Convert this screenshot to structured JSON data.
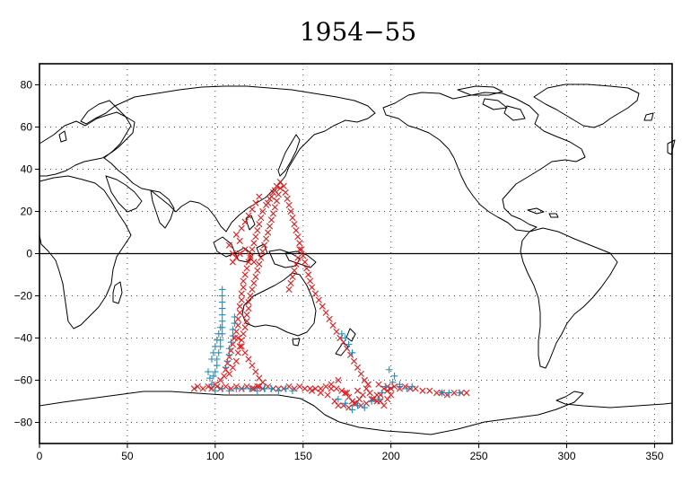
{
  "chart_data": {
    "type": "scatter",
    "title": "1954−55",
    "xlabel": "",
    "ylabel": "",
    "xlim": [
      0,
      360
    ],
    "ylim": [
      -90,
      90
    ],
    "x_ticks": [
      0,
      50,
      100,
      150,
      200,
      250,
      300,
      350
    ],
    "x_tick_labels": [
      "0",
      "50",
      "100",
      "150",
      "200",
      "250",
      "300",
      "350"
    ],
    "y_ticks": [
      -80,
      -60,
      -40,
      -20,
      0,
      20,
      40,
      60,
      80
    ],
    "y_tick_labels": [
      "−80",
      "−60",
      "−40",
      "−20",
      "0",
      "20",
      "40",
      "60",
      "80"
    ],
    "grid": true,
    "grid_x": [
      50,
      100,
      150,
      200,
      250,
      300,
      350
    ],
    "grid_y": [
      -80,
      -60,
      -40,
      -20,
      20,
      40,
      60,
      80
    ],
    "reference_line_y": 0,
    "basemap": "world-coastlines",
    "series": [
      {
        "marker": "x",
        "color": "#e41a1c",
        "points": [
          [
            88,
            -64
          ],
          [
            90,
            -63
          ],
          [
            93,
            -64
          ],
          [
            96,
            -63
          ],
          [
            98,
            -64
          ],
          [
            101,
            -63
          ],
          [
            103,
            -64
          ],
          [
            106,
            -63
          ],
          [
            109,
            -64
          ],
          [
            112,
            -63
          ],
          [
            115,
            -64
          ],
          [
            118,
            -63
          ],
          [
            121,
            -64
          ],
          [
            124,
            -63
          ],
          [
            127,
            -64
          ],
          [
            130,
            -63
          ],
          [
            133,
            -64
          ],
          [
            136,
            -64
          ],
          [
            139,
            -64
          ],
          [
            142,
            -63
          ],
          [
            145,
            -64
          ],
          [
            148,
            -63
          ],
          [
            151,
            -64
          ],
          [
            154,
            -64
          ],
          [
            157,
            -64
          ],
          [
            160,
            -64
          ],
          [
            163,
            -63
          ],
          [
            166,
            -64
          ],
          [
            169,
            -64
          ],
          [
            172,
            -65
          ],
          [
            174,
            -66
          ],
          [
            176,
            -68
          ],
          [
            178,
            -70
          ],
          [
            180,
            -71
          ],
          [
            182,
            -69
          ],
          [
            184,
            -67
          ],
          [
            186,
            -64
          ],
          [
            188,
            -66
          ],
          [
            190,
            -69
          ],
          [
            192,
            -70
          ],
          [
            194,
            -67
          ],
          [
            196,
            -64
          ],
          [
            198,
            -63
          ],
          [
            200,
            -64
          ],
          [
            202,
            -63
          ],
          [
            205,
            -64
          ],
          [
            208,
            -63
          ],
          [
            211,
            -64
          ],
          [
            214,
            -64
          ],
          [
            218,
            -65
          ],
          [
            222,
            -65
          ],
          [
            226,
            -66
          ],
          [
            229,
            -66
          ],
          [
            232,
            -67
          ],
          [
            236,
            -66
          ],
          [
            240,
            -66
          ],
          [
            243,
            -66
          ],
          [
            168,
            -70
          ],
          [
            170,
            -72
          ],
          [
            173,
            -72
          ],
          [
            176,
            -73
          ],
          [
            179,
            -71
          ],
          [
            183,
            -72
          ],
          [
            186,
            -71
          ],
          [
            189,
            -69
          ],
          [
            192,
            -67
          ],
          [
            194,
            -70
          ],
          [
            196,
            -72
          ],
          [
            198,
            -69
          ],
          [
            175,
            -66
          ],
          [
            181,
            -65
          ],
          [
            187,
            -62
          ],
          [
            193,
            -62
          ],
          [
            166,
            -62
          ],
          [
            170,
            -60
          ],
          [
            198,
            -65
          ],
          [
            200,
            -67
          ],
          [
            160,
            -66
          ],
          [
            155,
            -65
          ],
          [
            164,
            -67
          ],
          [
            100,
            -62
          ],
          [
            103,
            -60
          ],
          [
            105,
            -58
          ],
          [
            106,
            -55
          ],
          [
            107,
            -52
          ],
          [
            108,
            -49
          ],
          [
            109,
            -46
          ],
          [
            110,
            -43
          ],
          [
            111,
            -40
          ],
          [
            112,
            -37
          ],
          [
            113,
            -34
          ],
          [
            113,
            -31
          ],
          [
            114,
            -28
          ],
          [
            114,
            -25
          ],
          [
            115,
            -22
          ],
          [
            115,
            -19
          ],
          [
            116,
            -16
          ],
          [
            116,
            -13
          ],
          [
            117,
            -10
          ],
          [
            118,
            -7
          ],
          [
            119,
            -4
          ],
          [
            120,
            -1
          ],
          [
            121,
            2
          ],
          [
            122,
            5
          ],
          [
            123,
            8
          ],
          [
            124,
            11
          ],
          [
            125,
            14
          ],
          [
            126,
            17
          ],
          [
            127,
            20
          ],
          [
            129,
            23
          ],
          [
            131,
            26
          ],
          [
            133,
            29
          ],
          [
            135,
            32
          ],
          [
            137,
            34
          ],
          [
            139,
            32
          ],
          [
            140,
            29
          ],
          [
            141,
            26
          ],
          [
            142,
            23
          ],
          [
            143,
            20
          ],
          [
            144,
            17
          ],
          [
            145,
            14
          ],
          [
            146,
            11
          ],
          [
            147,
            8
          ],
          [
            148,
            5
          ],
          [
            149,
            2
          ],
          [
            150,
            -1
          ],
          [
            151,
            -4
          ],
          [
            152,
            -7
          ],
          [
            153,
            -10
          ],
          [
            154,
            -13
          ],
          [
            155,
            -16
          ],
          [
            157,
            -19
          ],
          [
            159,
            -22
          ],
          [
            161,
            -25
          ],
          [
            163,
            -28
          ],
          [
            165,
            -31
          ],
          [
            167,
            -34
          ],
          [
            169,
            -37
          ],
          [
            171,
            -40
          ],
          [
            173,
            -42
          ],
          [
            175,
            -45
          ],
          [
            177,
            -48
          ],
          [
            179,
            -51
          ],
          [
            181,
            -54
          ],
          [
            183,
            -57
          ],
          [
            185,
            -60
          ],
          [
            187,
            -62
          ],
          [
            108,
            -57
          ],
          [
            110,
            -54
          ],
          [
            112,
            -51
          ],
          [
            113,
            -47
          ],
          [
            114,
            -44
          ],
          [
            115,
            -41
          ],
          [
            116,
            -38
          ],
          [
            117,
            -35
          ],
          [
            118,
            -32
          ],
          [
            118,
            -29
          ],
          [
            119,
            -26
          ],
          [
            119,
            -23
          ],
          [
            120,
            -20
          ],
          [
            121,
            -17
          ],
          [
            122,
            -14
          ],
          [
            123,
            -11
          ],
          [
            124,
            -8
          ],
          [
            125,
            -5
          ],
          [
            126,
            -2
          ],
          [
            127,
            1
          ],
          [
            128,
            4
          ],
          [
            129,
            7
          ],
          [
            130,
            10
          ],
          [
            131,
            13
          ],
          [
            132,
            16
          ],
          [
            133,
            19
          ],
          [
            134,
            22
          ],
          [
            135,
            25
          ],
          [
            136,
            28
          ],
          [
            137,
            31
          ],
          [
            134,
            30
          ],
          [
            132,
            27
          ],
          [
            130,
            24
          ],
          [
            113,
            -40
          ],
          [
            115,
            -44
          ],
          [
            117,
            -47
          ],
          [
            119,
            -50
          ],
          [
            121,
            -53
          ],
          [
            123,
            -56
          ],
          [
            125,
            -59
          ],
          [
            127,
            -61
          ],
          [
            125,
            -63
          ],
          [
            122,
            -64
          ],
          [
            148,
            2
          ],
          [
            147,
            -2
          ],
          [
            146,
            -5
          ],
          [
            145,
            -8
          ],
          [
            144,
            -11
          ],
          [
            143,
            -14
          ],
          [
            142,
            -17
          ],
          [
            110,
            -4
          ],
          [
            112,
            -2
          ],
          [
            114,
            0
          ],
          [
            117,
            2
          ],
          [
            120,
            -2
          ],
          [
            122,
            -4
          ],
          [
            110,
            0
          ],
          [
            108,
            4
          ],
          [
            112,
            9
          ],
          [
            115,
            12
          ],
          [
            117,
            15
          ],
          [
            119,
            18
          ],
          [
            121,
            21
          ],
          [
            123,
            24
          ],
          [
            125,
            27
          ],
          [
            114,
            6
          ]
        ]
      },
      {
        "marker": "+",
        "color": "#1f8fc0",
        "points": [
          [
            100,
            -65
          ],
          [
            104,
            -64
          ],
          [
            108,
            -65
          ],
          [
            112,
            -64
          ],
          [
            116,
            -64
          ],
          [
            120,
            -64
          ],
          [
            124,
            -65
          ],
          [
            128,
            -64
          ],
          [
            132,
            -64
          ],
          [
            136,
            -65
          ],
          [
            140,
            -64
          ],
          [
            144,
            -65
          ],
          [
            99,
            -58
          ],
          [
            100,
            -56
          ],
          [
            101,
            -53
          ],
          [
            101,
            -50
          ],
          [
            102,
            -47
          ],
          [
            103,
            -44
          ],
          [
            103,
            -41
          ],
          [
            104,
            -38
          ],
          [
            104,
            -35
          ],
          [
            104,
            -32
          ],
          [
            104,
            -29
          ],
          [
            104,
            -26
          ],
          [
            104,
            -23
          ],
          [
            104,
            -20
          ],
          [
            104,
            -17
          ],
          [
            106,
            -54
          ],
          [
            107,
            -51
          ],
          [
            108,
            -48
          ],
          [
            108,
            -45
          ],
          [
            109,
            -42
          ],
          [
            110,
            -39
          ],
          [
            110,
            -36
          ],
          [
            111,
            -33
          ],
          [
            111,
            -30
          ],
          [
            98,
            -62
          ],
          [
            97,
            -59
          ],
          [
            96,
            -56
          ],
          [
            98,
            -50
          ],
          [
            99,
            -47
          ],
          [
            100,
            -44
          ],
          [
            101,
            -41
          ],
          [
            102,
            -38
          ],
          [
            103,
            -35
          ],
          [
            170,
            -69
          ],
          [
            174,
            -71
          ],
          [
            178,
            -74
          ],
          [
            181,
            -72
          ],
          [
            185,
            -73
          ],
          [
            189,
            -70
          ],
          [
            193,
            -69
          ],
          [
            195,
            -66
          ],
          [
            197,
            -63
          ],
          [
            201,
            -61
          ],
          [
            205,
            -63
          ],
          [
            209,
            -64
          ],
          [
            212,
            -63
          ],
          [
            229,
            -66
          ],
          [
            233,
            -66
          ],
          [
            239,
            -66
          ],
          [
            174,
            -40
          ],
          [
            176,
            -43
          ],
          [
            178,
            -47
          ],
          [
            172,
            -38
          ],
          [
            205,
            -62
          ],
          [
            202,
            -58
          ],
          [
            199,
            -55
          ]
        ]
      }
    ]
  }
}
